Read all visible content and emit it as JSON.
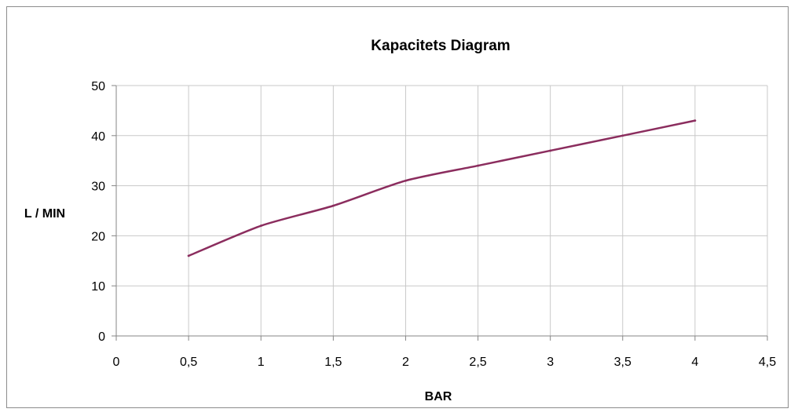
{
  "chart_data": {
    "type": "line",
    "title": "Kapacitets Diagram",
    "xlabel": "BAR",
    "ylabel": "L / MIN",
    "xlim": [
      0,
      4.5
    ],
    "ylim": [
      0,
      50
    ],
    "x_ticks": [
      0,
      0.5,
      1,
      1.5,
      2,
      2.5,
      3,
      3.5,
      4,
      4.5
    ],
    "x_tick_labels": [
      "0",
      "0,5",
      "1",
      "1,5",
      "2",
      "2,5",
      "3",
      "3,5",
      "4",
      "4,5"
    ],
    "y_ticks": [
      0,
      10,
      20,
      30,
      40,
      50
    ],
    "y_tick_labels": [
      "0",
      "10",
      "20",
      "30",
      "40",
      "50"
    ],
    "grid": true,
    "series": [
      {
        "color": "#8B2D5E",
        "x": [
          0.5,
          1,
          1.5,
          2,
          2.5,
          3,
          3.5,
          4
        ],
        "y": [
          16,
          22,
          26,
          31,
          34,
          37,
          40,
          43
        ]
      }
    ]
  }
}
